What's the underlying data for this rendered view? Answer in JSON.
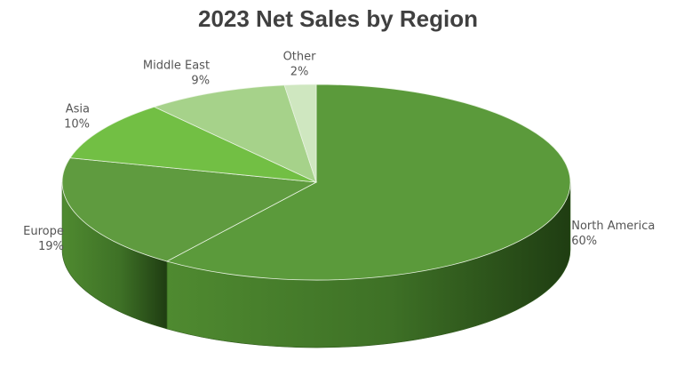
{
  "chart_data": {
    "type": "pie",
    "title": "2023 Net Sales by Region",
    "categories": [
      "North America",
      "Europe",
      "Asia",
      "Middle East",
      "Other"
    ],
    "values": [
      60,
      19,
      10,
      9,
      2
    ],
    "value_labels": [
      "60%",
      "19%",
      "10%",
      "9%",
      "2%"
    ],
    "colors": [
      "#5b9a3b",
      "#5f9b3f",
      "#72bf44",
      "#a6d28a",
      "#cfe7c0"
    ],
    "side_color": "#3d6e24",
    "legend": "none",
    "style": "3d"
  }
}
